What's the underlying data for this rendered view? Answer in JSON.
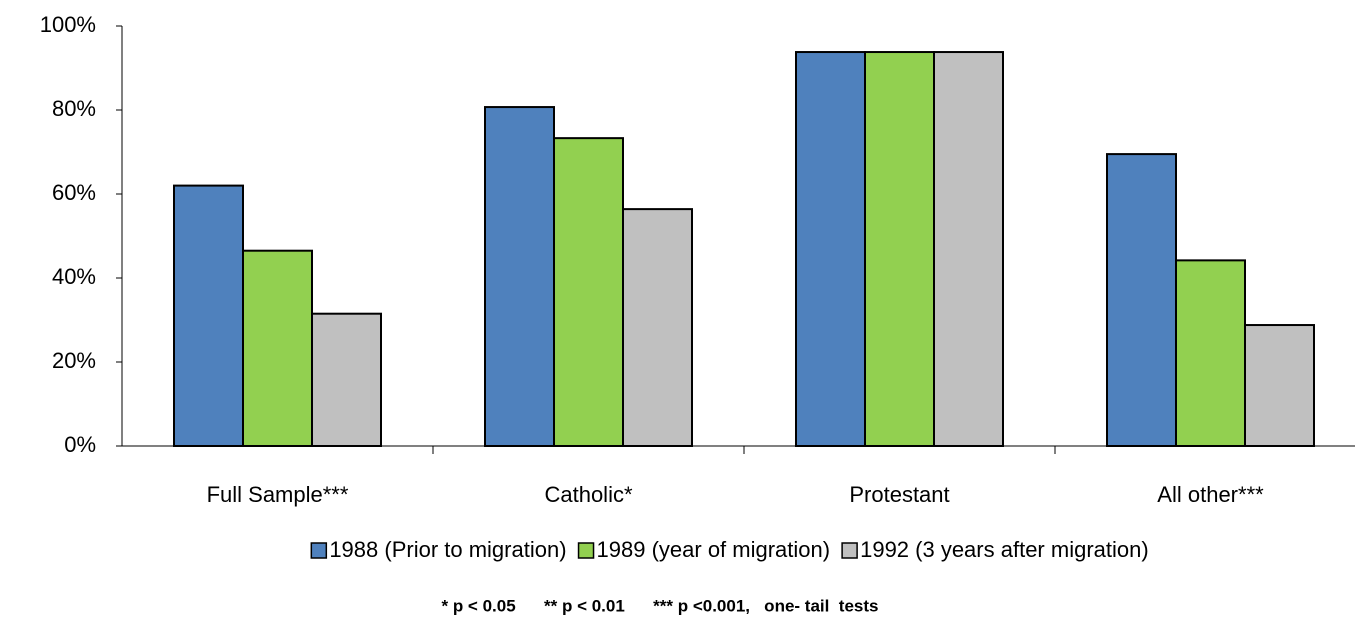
{
  "chart_data": {
    "type": "bar",
    "categories": [
      "Full Sample***",
      "Catholic*",
      "Protestant",
      "All other***"
    ],
    "series": [
      {
        "name": "1988 (Prior to migration)",
        "color": "#4f81bd",
        "values": [
          62,
          80.7,
          93.8,
          69.5
        ]
      },
      {
        "name": "1989 (year of migration)",
        "color": "#92d050",
        "values": [
          46.5,
          73.3,
          93.8,
          44.2
        ]
      },
      {
        "name": "1992 (3 years after migration)",
        "color": "#c0c0c0",
        "values": [
          31.5,
          56.4,
          93.8,
          28.8
        ]
      }
    ],
    "ylim": [
      0,
      100
    ],
    "yticks": [
      {
        "value": 0,
        "label": "0%"
      },
      {
        "value": 20,
        "label": "20%"
      },
      {
        "value": 40,
        "label": "40%"
      },
      {
        "value": 60,
        "label": "60%"
      },
      {
        "value": 80,
        "label": "80%"
      },
      {
        "value": 100,
        "label": "100%"
      }
    ],
    "grid": false,
    "legend": "bottom",
    "note": "* p < 0.05      ** p < 0.01      *** p <0.001,   one- tail  tests"
  }
}
